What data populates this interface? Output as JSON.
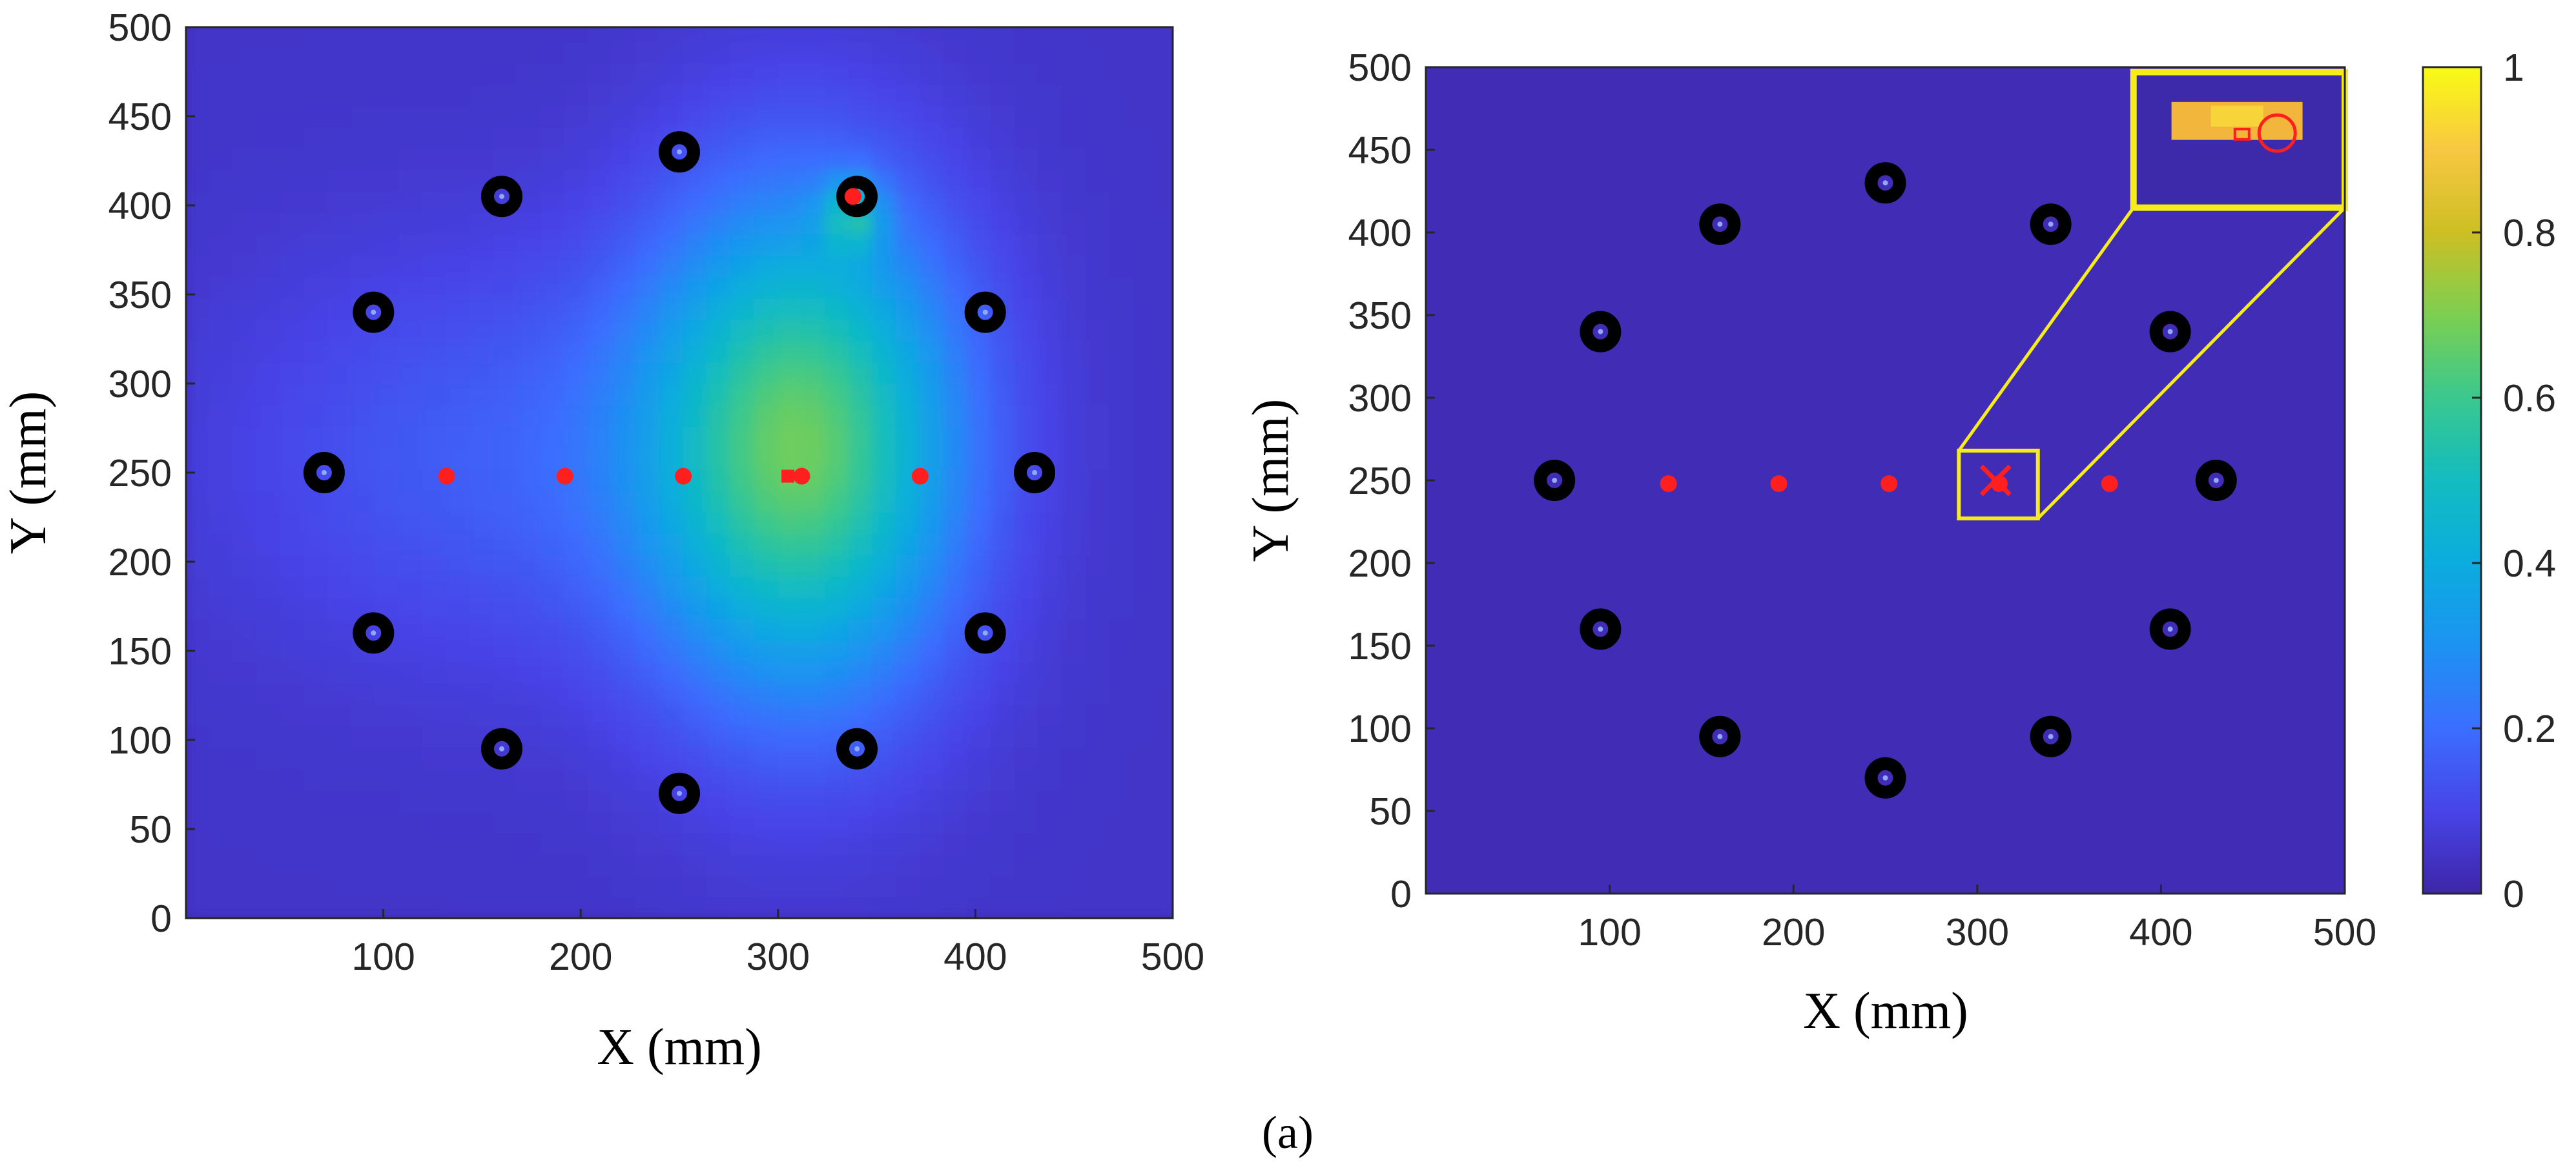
{
  "figure": {
    "caption": "(a)"
  },
  "chart_data": [
    {
      "type": "heatmap",
      "xlabel": "X (mm)",
      "ylabel": "Y (mm)",
      "xlim": [
        0,
        500
      ],
      "ylim": [
        0,
        500
      ],
      "xticks": [
        "100",
        "200",
        "300",
        "400",
        "500"
      ],
      "yticks": [
        "0",
        "50",
        "100",
        "150",
        "200",
        "250",
        "300",
        "350",
        "400",
        "450",
        "500"
      ],
      "grid": false,
      "colormap": "parula",
      "background_level": 0.05,
      "hotspots": [
        {
          "x": 312,
          "y": 265,
          "sx": 55,
          "sy": 95,
          "level": 0.6
        },
        {
          "x": 160,
          "y": 260,
          "sx": 95,
          "sy": 80,
          "level": 0.11
        },
        {
          "x": 338,
          "y": 395,
          "sx": 10,
          "sy": 14,
          "level": 0.3
        }
      ],
      "sensors": [
        {
          "x": 70,
          "y": 250
        },
        {
          "x": 95,
          "y": 340
        },
        {
          "x": 160,
          "y": 405
        },
        {
          "x": 250,
          "y": 430
        },
        {
          "x": 340,
          "y": 405
        },
        {
          "x": 405,
          "y": 340
        },
        {
          "x": 430,
          "y": 250
        },
        {
          "x": 405,
          "y": 160
        },
        {
          "x": 340,
          "y": 95
        },
        {
          "x": 250,
          "y": 70
        },
        {
          "x": 160,
          "y": 95
        },
        {
          "x": 95,
          "y": 160
        }
      ],
      "test_points": [
        {
          "x": 132,
          "y": 248
        },
        {
          "x": 192,
          "y": 248
        },
        {
          "x": 252,
          "y": 248
        },
        {
          "x": 312,
          "y": 248
        },
        {
          "x": 372,
          "y": 248
        },
        {
          "x": 338,
          "y": 405
        }
      ],
      "estimate": {
        "x": 305,
        "y": 248
      }
    },
    {
      "type": "heatmap",
      "xlabel": "X (mm)",
      "ylabel": "Y (mm)",
      "xlim": [
        0,
        500
      ],
      "ylim": [
        0,
        500
      ],
      "xticks": [
        "100",
        "200",
        "300",
        "400",
        "500"
      ],
      "yticks": [
        "0",
        "50",
        "100",
        "150",
        "200",
        "250",
        "300",
        "350",
        "400",
        "450",
        "500"
      ],
      "grid": false,
      "colormap": "parula",
      "colorbar": {
        "min": 0,
        "max": 1,
        "ticks": [
          "0",
          "0.2",
          "0.4",
          "0.6",
          "0.8",
          "1"
        ]
      },
      "background_level": 0.02,
      "sensors": [
        {
          "x": 70,
          "y": 250
        },
        {
          "x": 95,
          "y": 340
        },
        {
          "x": 160,
          "y": 405
        },
        {
          "x": 250,
          "y": 430
        },
        {
          "x": 340,
          "y": 405
        },
        {
          "x": 405,
          "y": 340
        },
        {
          "x": 430,
          "y": 250
        },
        {
          "x": 405,
          "y": 160
        },
        {
          "x": 340,
          "y": 95
        },
        {
          "x": 250,
          "y": 70
        },
        {
          "x": 160,
          "y": 95
        },
        {
          "x": 95,
          "y": 160
        }
      ],
      "test_points": [
        {
          "x": 132,
          "y": 248
        },
        {
          "x": 192,
          "y": 248
        },
        {
          "x": 252,
          "y": 248
        },
        {
          "x": 312,
          "y": 248
        },
        {
          "x": 372,
          "y": 248
        }
      ],
      "estimate": {
        "x": 310,
        "y": 250
      },
      "zoom_region": {
        "x": [
          290,
          333
        ],
        "y": [
          227,
          268
        ]
      },
      "zoom_inset": {
        "x": [
          385,
          500
        ],
        "y": [
          415,
          497
        ]
      }
    }
  ],
  "colors": {
    "background": "#ffffff",
    "sensor": "#000000",
    "sensor_center": "#8fa9ff",
    "test_point": "#ff1f1f",
    "zoom_box": "#f5ec1a",
    "axis": "#262626"
  }
}
